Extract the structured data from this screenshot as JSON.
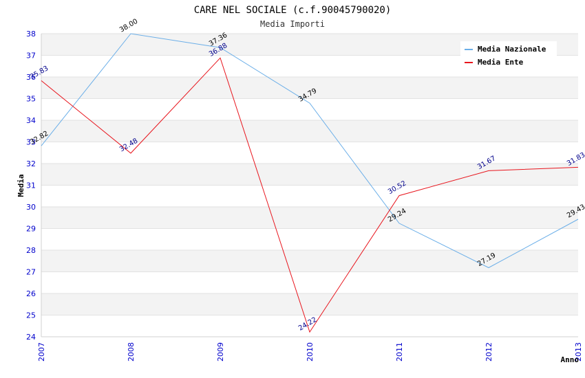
{
  "chart_data": {
    "type": "line",
    "title": "CARE NEL SOCIALE (c.f.90045790020)",
    "subtitle": "Media Importi",
    "xlabel": "Anno",
    "ylabel": "Media",
    "categories": [
      "2007",
      "2008",
      "2009",
      "2010",
      "2011",
      "2012",
      "2013"
    ],
    "ylim": [
      24,
      38
    ],
    "yticks": [
      "24",
      "25",
      "26",
      "27",
      "28",
      "29",
      "30",
      "31",
      "32",
      "33",
      "34",
      "35",
      "36",
      "37",
      "38"
    ],
    "grid": true,
    "legend_position": "top-right",
    "series": [
      {
        "name": "Media Nazionale",
        "color": "#6aaee8",
        "label_color": "#000000",
        "values": [
          32.82,
          38.0,
          37.36,
          34.79,
          29.24,
          27.19,
          29.43
        ],
        "labels": [
          "32.82",
          "38.00",
          "37.36",
          "34.79",
          "29.24",
          "27.19",
          "29.43"
        ]
      },
      {
        "name": "Media Ente",
        "color": "#e8141c",
        "label_color": "#00008b",
        "values": [
          35.83,
          32.48,
          36.88,
          24.22,
          30.52,
          31.67,
          31.83
        ],
        "labels": [
          "35.83",
          "32.48",
          "36.88",
          "24.22",
          "30.52",
          "31.67",
          "31.83"
        ]
      }
    ]
  }
}
